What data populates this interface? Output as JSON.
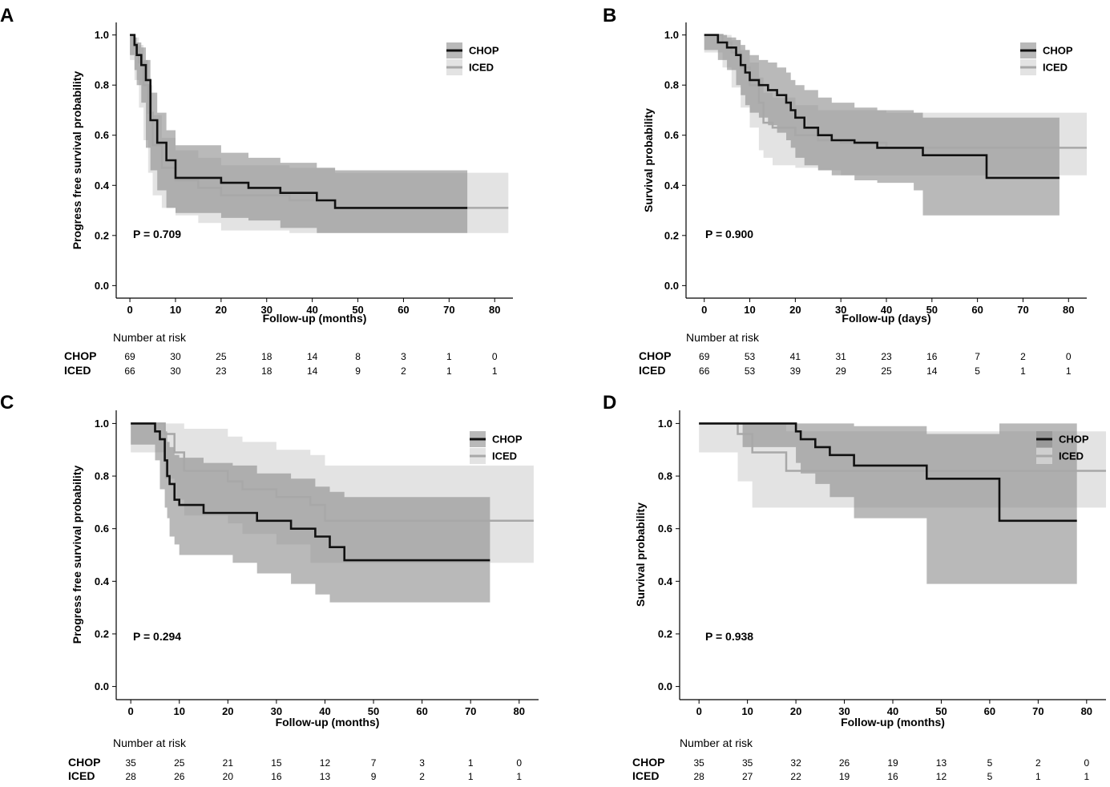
{
  "figure": {
    "colors": {
      "chop_line": "#111111",
      "chop_band": "#8a8a8a",
      "iced_line": "#a8a8a8",
      "iced_band": "#d9d9d9",
      "axis": "#000000"
    }
  },
  "chart_data": [
    {
      "id": "A",
      "letter": "A",
      "type": "line",
      "ylabel": "Progress free survival probability",
      "xlabel": "Follow-up (months)",
      "xticks": [
        0,
        10,
        20,
        30,
        40,
        50,
        60,
        70,
        80
      ],
      "yticks": [
        0.0,
        0.2,
        0.4,
        0.6,
        0.8,
        1.0
      ],
      "ytick_labels": [
        "0.0",
        "0.2",
        "0.4",
        "0.6",
        "0.8",
        "1.0"
      ],
      "xlim": [
        -3,
        84
      ],
      "ylim": [
        -0.05,
        1.05
      ],
      "p_value": "P = 0.709",
      "legend": [
        "CHOP",
        "ICED"
      ],
      "series": [
        {
          "name": "CHOP",
          "x": [
            0,
            1,
            1.5,
            2.5,
            3.5,
            4.5,
            6,
            8,
            10,
            20,
            26,
            33,
            41,
            45,
            74
          ],
          "y": [
            1.0,
            0.96,
            0.92,
            0.88,
            0.82,
            0.66,
            0.57,
            0.5,
            0.43,
            0.41,
            0.39,
            0.37,
            0.34,
            0.31,
            0.31
          ],
          "upper": [
            1.0,
            0.99,
            0.97,
            0.95,
            0.9,
            0.77,
            0.69,
            0.62,
            0.56,
            0.53,
            0.51,
            0.49,
            0.47,
            0.46,
            0.46
          ],
          "lower": [
            1.0,
            0.92,
            0.86,
            0.8,
            0.73,
            0.55,
            0.46,
            0.38,
            0.31,
            0.29,
            0.27,
            0.26,
            0.23,
            0.21,
            0.21
          ]
        },
        {
          "name": "ICED",
          "x": [
            0,
            1,
            2,
            3,
            4,
            5,
            7,
            10,
            15,
            20,
            35,
            45,
            83
          ],
          "y": [
            1.0,
            0.95,
            0.89,
            0.8,
            0.69,
            0.56,
            0.47,
            0.42,
            0.39,
            0.36,
            0.34,
            0.31,
            0.31
          ],
          "upper": [
            1.0,
            0.99,
            0.96,
            0.9,
            0.8,
            0.68,
            0.59,
            0.54,
            0.51,
            0.48,
            0.47,
            0.45,
            0.45
          ],
          "lower": [
            1.0,
            0.9,
            0.82,
            0.71,
            0.58,
            0.45,
            0.36,
            0.31,
            0.28,
            0.25,
            0.22,
            0.21,
            0.21
          ]
        }
      ],
      "risk_table": {
        "title": "Number at risk",
        "times": [
          0,
          10,
          20,
          30,
          40,
          50,
          60,
          70,
          80
        ],
        "rows": [
          {
            "group": "CHOP",
            "values": [
              "69",
              "30",
              "25",
              "18",
              "14",
              "8",
              "3",
              "1",
              "0"
            ]
          },
          {
            "group": "ICED",
            "values": [
              "66",
              "30",
              "23",
              "18",
              "14",
              "9",
              "2",
              "1",
              "1"
            ]
          }
        ]
      }
    },
    {
      "id": "B",
      "letter": "B",
      "type": "line",
      "ylabel": "Survival probability",
      "xlabel": "Follow-up (days)",
      "xticks": [
        0,
        10,
        20,
        30,
        40,
        50,
        60,
        70,
        80
      ],
      "yticks": [
        0.0,
        0.2,
        0.4,
        0.6,
        0.8,
        1.0
      ],
      "ytick_labels": [
        "0.0",
        "0.2",
        "0.4",
        "0.6",
        "0.8",
        "1.0"
      ],
      "xlim": [
        -4,
        84
      ],
      "ylim": [
        -0.05,
        1.05
      ],
      "p_value": "P = 0.900",
      "legend": [
        "CHOP",
        "ICED"
      ],
      "series": [
        {
          "name": "CHOP",
          "x": [
            0,
            3,
            5,
            7,
            8,
            9,
            10,
            12,
            14,
            16,
            18,
            19,
            20,
            22,
            25,
            28,
            33,
            38,
            46,
            48,
            62,
            78
          ],
          "y": [
            1.0,
            0.97,
            0.95,
            0.92,
            0.88,
            0.85,
            0.82,
            0.8,
            0.78,
            0.76,
            0.73,
            0.7,
            0.67,
            0.63,
            0.6,
            0.58,
            0.57,
            0.55,
            0.55,
            0.52,
            0.43,
            0.43
          ],
          "upper": [
            1.0,
            1.0,
            0.99,
            0.98,
            0.96,
            0.94,
            0.92,
            0.9,
            0.89,
            0.87,
            0.85,
            0.82,
            0.8,
            0.78,
            0.75,
            0.73,
            0.71,
            0.7,
            0.69,
            0.67,
            0.67,
            0.67
          ],
          "lower": [
            1.0,
            0.94,
            0.9,
            0.86,
            0.8,
            0.76,
            0.72,
            0.69,
            0.67,
            0.64,
            0.61,
            0.58,
            0.55,
            0.51,
            0.48,
            0.46,
            0.44,
            0.42,
            0.41,
            0.38,
            0.28,
            0.28
          ]
        },
        {
          "name": "ICED",
          "x": [
            0,
            4,
            6,
            8,
            10,
            12,
            13,
            15,
            20,
            25,
            30,
            40,
            84
          ],
          "y": [
            1.0,
            0.97,
            0.93,
            0.87,
            0.8,
            0.73,
            0.65,
            0.63,
            0.6,
            0.58,
            0.57,
            0.55,
            0.55
          ],
          "upper": [
            1.0,
            1.0,
            0.98,
            0.94,
            0.89,
            0.83,
            0.77,
            0.75,
            0.72,
            0.7,
            0.7,
            0.69,
            0.69
          ],
          "lower": [
            1.0,
            0.93,
            0.87,
            0.79,
            0.71,
            0.63,
            0.54,
            0.51,
            0.48,
            0.47,
            0.46,
            0.44,
            0.44
          ]
        }
      ],
      "risk_table": {
        "title": "Number at risk",
        "times": [
          0,
          10,
          20,
          30,
          40,
          50,
          60,
          70,
          80
        ],
        "rows": [
          {
            "group": "CHOP",
            "values": [
              "69",
              "53",
              "41",
              "31",
              "23",
              "16",
              "7",
              "2",
              "0"
            ]
          },
          {
            "group": "ICED",
            "values": [
              "66",
              "53",
              "39",
              "29",
              "25",
              "14",
              "5",
              "1",
              "1"
            ]
          }
        ]
      }
    },
    {
      "id": "C",
      "letter": "C",
      "type": "line",
      "ylabel": "Progress free survival probability",
      "xlabel": "Follow-up (months)",
      "xticks": [
        0,
        10,
        20,
        30,
        40,
        50,
        60,
        70,
        80
      ],
      "yticks": [
        0.0,
        0.2,
        0.4,
        0.6,
        0.8,
        1.0
      ],
      "ytick_labels": [
        "0.0",
        "0.2",
        "0.4",
        "0.6",
        "0.8",
        "1.0"
      ],
      "xlim": [
        -3,
        84
      ],
      "ylim": [
        -0.05,
        1.05
      ],
      "p_value": "P = 0.294",
      "legend": [
        "CHOP",
        "ICED"
      ],
      "series": [
        {
          "name": "CHOP",
          "x": [
            0,
            5,
            6,
            7,
            7.5,
            8,
            9,
            10,
            15,
            21,
            26,
            33,
            38,
            41,
            44,
            74
          ],
          "y": [
            1.0,
            0.97,
            0.94,
            0.86,
            0.8,
            0.77,
            0.71,
            0.69,
            0.66,
            0.66,
            0.63,
            0.6,
            0.57,
            0.53,
            0.48,
            0.48
          ],
          "upper": [
            1.0,
            1.0,
            1.0,
            0.97,
            0.93,
            0.91,
            0.88,
            0.87,
            0.85,
            0.84,
            0.81,
            0.79,
            0.76,
            0.74,
            0.72,
            0.72
          ],
          "lower": [
            1.0,
            0.92,
            0.86,
            0.75,
            0.68,
            0.64,
            0.57,
            0.54,
            0.5,
            0.5,
            0.47,
            0.43,
            0.39,
            0.35,
            0.32,
            0.32
          ]
        },
        {
          "name": "ICED",
          "x": [
            0,
            7,
            9,
            11,
            20,
            23,
            30,
            37,
            40,
            83
          ],
          "y": [
            1.0,
            0.96,
            0.89,
            0.82,
            0.78,
            0.75,
            0.72,
            0.69,
            0.63,
            0.63
          ],
          "upper": [
            1.0,
            1.0,
            1.0,
            0.98,
            0.95,
            0.93,
            0.9,
            0.88,
            0.84,
            0.84
          ],
          "lower": [
            1.0,
            0.89,
            0.79,
            0.71,
            0.65,
            0.62,
            0.58,
            0.54,
            0.47,
            0.47
          ]
        }
      ],
      "risk_table": {
        "title": "Number at risk",
        "times": [
          0,
          10,
          20,
          30,
          40,
          50,
          60,
          70,
          80
        ],
        "rows": [
          {
            "group": "CHOP",
            "values": [
              "35",
              "25",
              "21",
              "15",
              "12",
              "7",
              "3",
              "1",
              "0"
            ]
          },
          {
            "group": "ICED",
            "values": [
              "28",
              "26",
              "20",
              "16",
              "13",
              "9",
              "2",
              "1",
              "1"
            ]
          }
        ]
      }
    },
    {
      "id": "D",
      "letter": "D",
      "type": "line",
      "ylabel": "Survival probability",
      "xlabel": "Follow-up (months)",
      "xticks": [
        0,
        10,
        20,
        30,
        40,
        50,
        60,
        70,
        80
      ],
      "yticks": [
        0.0,
        0.2,
        0.4,
        0.6,
        0.8,
        1.0
      ],
      "ytick_labels": [
        "0.0",
        "0.2",
        "0.4",
        "0.6",
        "0.8",
        "1.0"
      ],
      "xlim": [
        -4,
        84
      ],
      "ylim": [
        -0.05,
        1.05
      ],
      "p_value": "P = 0.938",
      "legend": [
        "CHOP",
        "ICED"
      ],
      "series": [
        {
          "name": "CHOP",
          "x": [
            0,
            9,
            20,
            21,
            24,
            27,
            32,
            47,
            62,
            78
          ],
          "y": [
            1.0,
            1.0,
            0.97,
            0.94,
            0.91,
            0.88,
            0.84,
            0.79,
            0.63,
            0.63
          ],
          "upper": [
            1.0,
            1.0,
            1.0,
            1.0,
            1.0,
            1.0,
            0.99,
            0.96,
            1.0,
            1.0
          ],
          "lower": [
            1.0,
            1.0,
            0.91,
            0.85,
            0.81,
            0.77,
            0.72,
            0.64,
            0.39,
            0.39
          ]
        },
        {
          "name": "ICED",
          "x": [
            0,
            8,
            11,
            18,
            84
          ],
          "y": [
            1.0,
            0.96,
            0.89,
            0.82,
            0.82
          ],
          "upper": [
            1.0,
            1.0,
            1.0,
            0.97,
            0.97
          ],
          "lower": [
            1.0,
            0.89,
            0.78,
            0.68,
            0.68
          ]
        }
      ],
      "risk_table": {
        "title": "Number at risk",
        "times": [
          0,
          10,
          20,
          30,
          40,
          50,
          60,
          70,
          80
        ],
        "rows": [
          {
            "group": "CHOP",
            "values": [
              "35",
              "35",
              "32",
              "26",
              "19",
              "13",
              "5",
              "2",
              "0"
            ]
          },
          {
            "group": "ICED",
            "values": [
              "28",
              "27",
              "22",
              "19",
              "16",
              "12",
              "5",
              "1",
              "1"
            ]
          }
        ]
      }
    }
  ]
}
